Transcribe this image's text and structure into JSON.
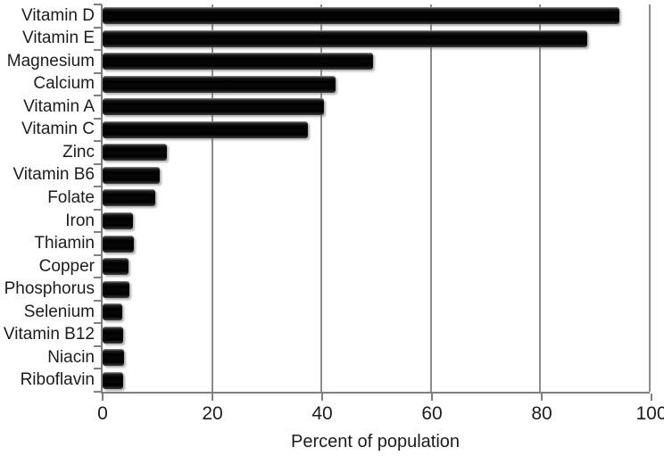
{
  "chart_data": {
    "type": "bar",
    "orientation": "horizontal",
    "title": "",
    "xlabel": "Percent of population",
    "ylabel": "",
    "xlim": [
      0,
      100
    ],
    "xticks": [
      0,
      20,
      40,
      60,
      80,
      100
    ],
    "grid": "vertical-gridlines-at-xticks",
    "legend": "none",
    "categories": [
      "Vitamin D",
      "Vitamin E",
      "Magnesium",
      "Calcium",
      "Vitamin A",
      "Vitamin C",
      "Zinc",
      "Vitamin B6",
      "Folate",
      "Iron",
      "Thiamin",
      "Copper",
      "Phosphorus",
      "Selenium",
      "Vitamin B12",
      "Niacin",
      "Riboflavin"
    ],
    "values": [
      94.5,
      88.5,
      49.5,
      42.5,
      40.5,
      37.5,
      11.7,
      10.5,
      9.7,
      5.5,
      5.7,
      4.7,
      4.9,
      3.6,
      3.7,
      3.9,
      3.7
    ],
    "colors": {
      "bar": "#000000",
      "gridline": "#8c8c8c",
      "axis": "#7f7f7f",
      "text": "#1c1c1c",
      "background": "#ffffff"
    }
  }
}
